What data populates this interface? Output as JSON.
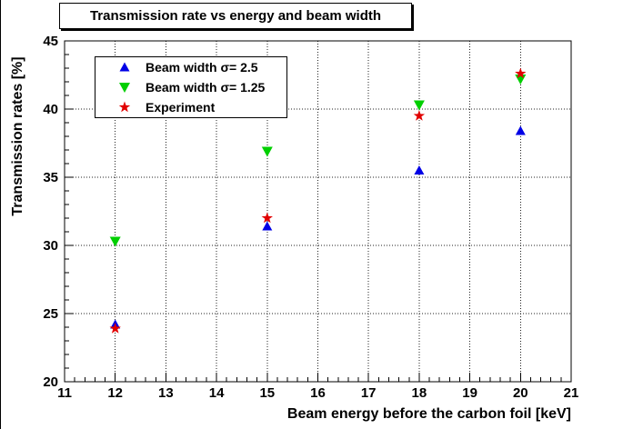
{
  "chart_data": {
    "type": "scatter",
    "title": "Transmission rate vs energy and beam width",
    "xlabel": "Beam energy before the carbon foil [keV]",
    "ylabel": "Transmission rates [%]",
    "xlim": [
      11,
      21
    ],
    "ylim": [
      20,
      45
    ],
    "x_major_ticks": [
      11,
      12,
      13,
      14,
      15,
      16,
      17,
      18,
      19,
      20,
      21
    ],
    "y_major_ticks": [
      20,
      25,
      30,
      35,
      40,
      45
    ],
    "x_minor_step": 0.2,
    "y_minor_step": 1,
    "grid": true,
    "grid_style": "dotted",
    "legend_position": "top-left",
    "series": [
      {
        "name": "Beam width σ= 2.5",
        "marker": "triangle-up",
        "color": "#0000e6",
        "x": [
          12,
          15,
          18,
          20
        ],
        "y": [
          24.2,
          31.4,
          35.5,
          38.4
        ]
      },
      {
        "name": "Beam width σ= 1.25",
        "marker": "triangle-down",
        "color": "#00cf00",
        "x": [
          12,
          15,
          18,
          20
        ],
        "y": [
          30.3,
          36.9,
          40.3,
          42.2
        ]
      },
      {
        "name": "Experiment",
        "marker": "star",
        "color": "#e10000",
        "x": [
          12,
          15,
          18,
          20
        ],
        "y": [
          23.9,
          32.0,
          39.5,
          42.6
        ]
      }
    ]
  }
}
